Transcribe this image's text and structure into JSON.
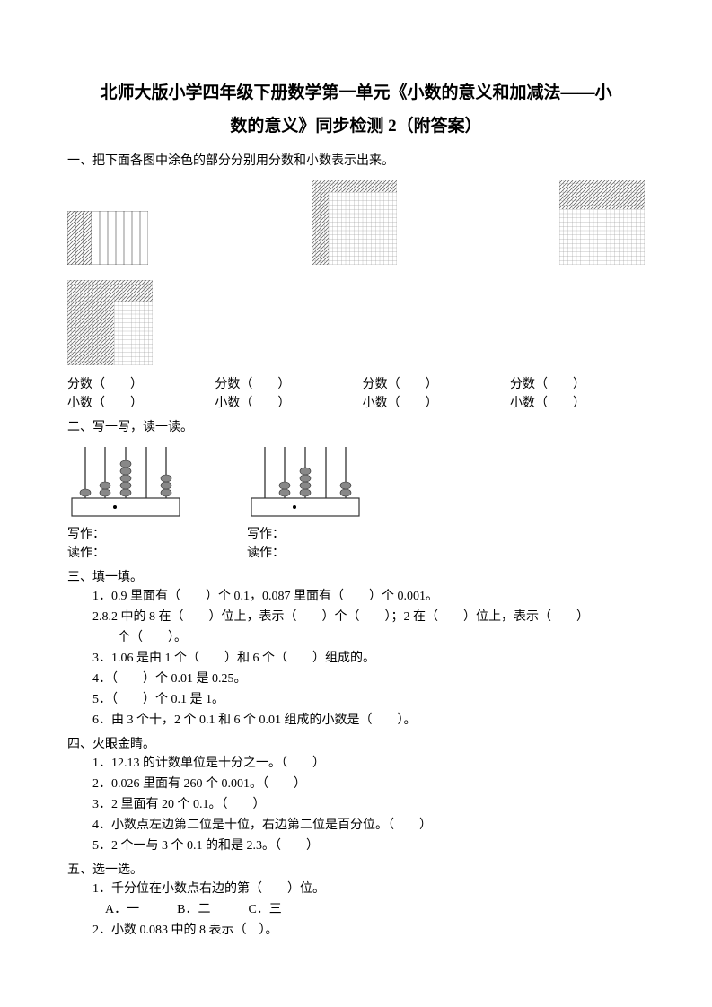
{
  "title": "北师大版小学四年级下册数学第一单元《小数的意义和加减法——小",
  "subtitle": "数的意义》同步检测 2（附答案）",
  "section1": {
    "heading": "一、把下面各图中涂色的部分分别用分数和小数表示出来。",
    "fraction_label": "分数（　　）",
    "decimal_label": "小数（　　）"
  },
  "section2": {
    "heading": "二、写一写，读一读。",
    "write": "写作：",
    "read": "读作："
  },
  "section3": {
    "heading": "三、填一填。",
    "q1": "1．0.9 里面有（　　）个 0.1，0.087 里面有（　　）个 0.001。",
    "q2": "2.8.2 中的 8 在（　　）位上，表示（　　）个（　　）；2 在（　　）位上，表示（　　）",
    "q2b": "个（　　）。",
    "q3": "3．1.06 是由 1 个（　　）和 6 个（　　）组成的。",
    "q4": "4．（　　）个 0.01 是 0.25。",
    "q5": "5．（　　）个 0.1 是 1。",
    "q6": "6．由 3 个十，2 个 0.1 和 6 个 0.01 组成的小数是（　　）。"
  },
  "section4": {
    "heading": "四、火眼金睛。",
    "q1": "1．12.13 的计数单位是十分之一。（　　）",
    "q2": "2．0.026 里面有 260 个 0.001。（　　）",
    "q3": "3．2 里面有 20 个 0.1。（　　）",
    "q4": "4．小数点左边第二位是十位，右边第二位是百分位。（　　）",
    "q5": "5．2 个一与 3 个 0.1 的和是 2.3。（　　）"
  },
  "section5": {
    "heading": "五、选一选。",
    "q1": "1．千分位在小数点右边的第（　　）位。",
    "q1opts": "A．一　　　B．二　　　C．三",
    "q2": "2．小数 0.083 中的 8 表示（　）。"
  },
  "grids": {
    "grid1": {
      "cols": 10,
      "rows": 1,
      "shaded_cols": 3,
      "w": 90,
      "h": 60
    },
    "grid2": {
      "cols": 20,
      "rows": 20,
      "shaded": "left8_top12",
      "w": 95,
      "h": 95
    },
    "grid3": {
      "cols": 20,
      "rows": 20,
      "shaded": "top8",
      "w": 95,
      "h": 95
    },
    "grid4": {
      "cols": 20,
      "rows": 20,
      "shaded": "complex",
      "w": 95,
      "h": 95
    }
  },
  "abacus": {
    "rods": 5,
    "w": 130,
    "h": 85
  }
}
